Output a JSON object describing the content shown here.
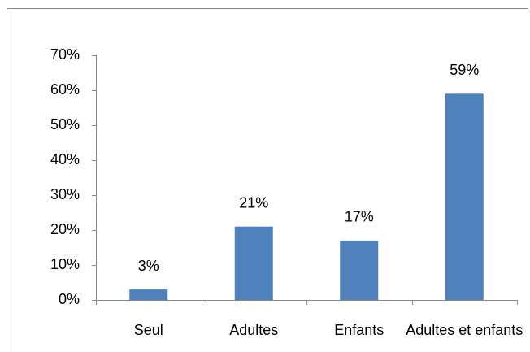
{
  "chart_data": {
    "type": "bar",
    "categories": [
      "Seul",
      "Adultes",
      "Enfants",
      "Adultes et enfants"
    ],
    "values": [
      3,
      21,
      17,
      59
    ],
    "value_labels": [
      "3%",
      "21%",
      "17%",
      "59%"
    ],
    "color": "#4f81bd",
    "ylim": [
      0,
      70
    ],
    "yticks": [
      {
        "value": 0,
        "label": "0%"
      },
      {
        "value": 10,
        "label": "10%"
      },
      {
        "value": 20,
        "label": "20%"
      },
      {
        "value": 30,
        "label": "30%"
      },
      {
        "value": 40,
        "label": "40%"
      },
      {
        "value": 50,
        "label": "50%"
      },
      {
        "value": 60,
        "label": "60%"
      },
      {
        "value": 70,
        "label": "70%"
      }
    ]
  }
}
